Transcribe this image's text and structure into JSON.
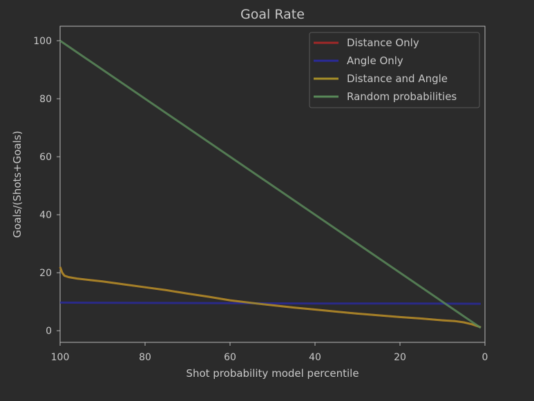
{
  "chart_data": {
    "type": "line",
    "title": "Goal Rate",
    "xlabel": "Shot probability model percentile",
    "ylabel": "Goals/(Shots+Goals)",
    "xlim": [
      100,
      0
    ],
    "ylim": [
      -4,
      105
    ],
    "x_inverted": true,
    "xticks": [
      100,
      80,
      60,
      40,
      20,
      0
    ],
    "yticks": [
      0,
      20,
      40,
      60,
      80,
      100
    ],
    "grid": false,
    "legend_position": "top-right",
    "series": [
      {
        "name": "Distance Only",
        "color": "#a02828",
        "x": [
          100,
          99.5,
          99,
          98,
          96,
          93,
          90,
          85,
          80,
          75,
          70,
          65,
          60,
          55,
          50,
          45,
          40,
          35,
          30,
          25,
          20,
          15,
          10,
          7,
          5,
          3,
          1
        ],
        "y": [
          22,
          20,
          19,
          18.5,
          18,
          17.5,
          17,
          16,
          15,
          14,
          12.8,
          11.7,
          10.5,
          9.6,
          8.8,
          8,
          7.3,
          6.6,
          5.9,
          5.3,
          4.7,
          4.2,
          3.6,
          3.3,
          2.9,
          2.2,
          1.2
        ]
      },
      {
        "name": "Angle Only",
        "color": "#2a2a9a",
        "x": [
          100,
          80,
          60,
          40,
          20,
          1
        ],
        "y": [
          9.7,
          9.6,
          9.5,
          9.4,
          9.4,
          9.3
        ]
      },
      {
        "name": "Distance and Angle",
        "color": "#a89028",
        "x": [
          100,
          99.5,
          99,
          98,
          96,
          93,
          90,
          85,
          80,
          75,
          70,
          65,
          60,
          55,
          50,
          45,
          40,
          35,
          30,
          25,
          20,
          15,
          10,
          7,
          5,
          3,
          1
        ],
        "y": [
          22,
          20,
          19,
          18.5,
          18,
          17.5,
          17,
          16,
          15,
          14,
          12.8,
          11.7,
          10.5,
          9.6,
          8.8,
          8,
          7.3,
          6.6,
          5.9,
          5.3,
          4.7,
          4.2,
          3.6,
          3.3,
          2.9,
          2.2,
          1.2
        ]
      },
      {
        "name": "Random probabilities",
        "color": "#5a8a5a",
        "x": [
          100,
          1
        ],
        "y": [
          100,
          1
        ]
      }
    ]
  }
}
